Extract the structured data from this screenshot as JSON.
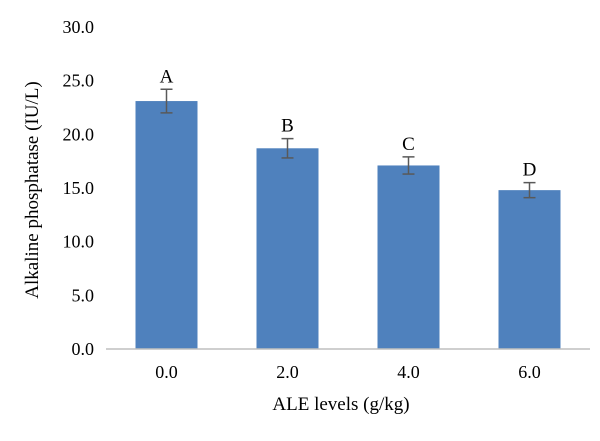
{
  "chart_data": {
    "type": "bar",
    "title": "",
    "xlabel": "ALE levels (g/kg)",
    "ylabel": "Alkaline phosphatase (IU/L)",
    "categories": [
      "0.0",
      "2.0",
      "4.0",
      "6.0"
    ],
    "values": [
      23.1,
      18.7,
      17.1,
      14.8
    ],
    "errors": [
      1.1,
      0.9,
      0.8,
      0.7
    ],
    "significance_labels": [
      "A",
      "B",
      "C",
      "D"
    ],
    "ylim": [
      0,
      30
    ],
    "yticks": [
      0,
      5,
      10,
      15,
      20,
      25,
      30
    ],
    "ytick_labels": [
      "0.0",
      "5.0",
      "10.0",
      "15.0",
      "20.0",
      "25.0",
      "30.0"
    ],
    "grid": false,
    "legend": "none",
    "colors": {
      "bar": "#4f81bd",
      "error_bar": "#595959",
      "axis": "#bfbfbf"
    }
  }
}
